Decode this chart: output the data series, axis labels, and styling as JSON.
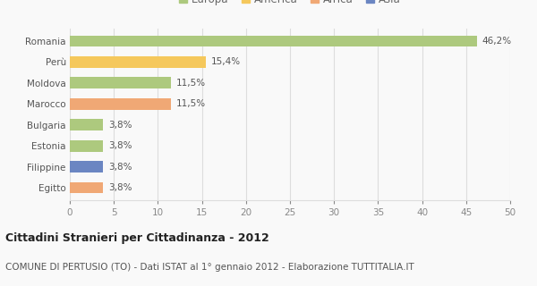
{
  "categories": [
    "Romania",
    "Perù",
    "Moldova",
    "Marocco",
    "Bulgaria",
    "Estonia",
    "Filippine",
    "Egitto"
  ],
  "values": [
    46.2,
    15.4,
    11.5,
    11.5,
    3.8,
    3.8,
    3.8,
    3.8
  ],
  "labels": [
    "46,2%",
    "15,4%",
    "11,5%",
    "11,5%",
    "3,8%",
    "3,8%",
    "3,8%",
    "3,8%"
  ],
  "colors": [
    "#adc97e",
    "#f5c85c",
    "#adc97e",
    "#f0a875",
    "#adc97e",
    "#adc97e",
    "#6b86c2",
    "#f0a875"
  ],
  "legend_labels": [
    "Europa",
    "America",
    "Africa",
    "Asia"
  ],
  "legend_colors": [
    "#adc97e",
    "#f5c85c",
    "#f0a875",
    "#6b86c2"
  ],
  "xlim": [
    0,
    50
  ],
  "xticks": [
    0,
    5,
    10,
    15,
    20,
    25,
    30,
    35,
    40,
    45,
    50
  ],
  "title_bold": "Cittadini Stranieri per Cittadinanza - 2012",
  "subtitle": "COMUNE DI PERTUSIO (TO) - Dati ISTAT al 1° gennaio 2012 - Elaborazione TUTTITALIA.IT",
  "bg_color": "#f9f9f9",
  "grid_color": "#dddddd",
  "bar_height": 0.55,
  "title_fontsize": 9,
  "subtitle_fontsize": 7.5,
  "label_fontsize": 7.5,
  "tick_fontsize": 7.5,
  "legend_fontsize": 8.5
}
